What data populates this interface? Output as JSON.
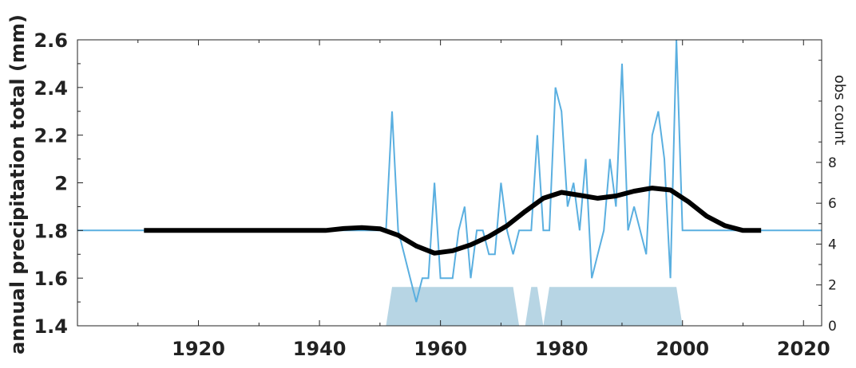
{
  "chart_data": {
    "type": "line",
    "xlabel": "",
    "ylabel": "annual precipitation total (mm)",
    "y2label": "obs count",
    "xlim": [
      1900,
      2023
    ],
    "ylim": [
      1.4,
      2.6
    ],
    "y2lim": [
      0,
      14
    ],
    "xticks": [
      1920,
      1940,
      1960,
      1980,
      2000,
      2020
    ],
    "xtick_labels": [
      "1920",
      "1940",
      "1960",
      "1980",
      "2000",
      "2020"
    ],
    "yticks": [
      1.4,
      1.6,
      1.8,
      2.0,
      2.2,
      2.4,
      2.6
    ],
    "ytick_labels": [
      "1.4",
      "1.6",
      "1.8",
      "2",
      "2.2",
      "2.4",
      "2.6"
    ],
    "y2ticks": [
      0,
      2,
      4,
      6,
      8
    ],
    "y2tick_labels": [
      "0",
      "2",
      "4",
      "6",
      "8"
    ],
    "grid": false,
    "legend": "none",
    "colors": {
      "raw": "#5aafe0",
      "smooth": "#000000",
      "obs": "#b7d5e4",
      "axis": "#222222"
    },
    "series": [
      {
        "role": "raw",
        "x": [
          1900,
          1951,
          1952,
          1953,
          1954,
          1955,
          1956,
          1957,
          1958,
          1959,
          1960,
          1961,
          1962,
          1963,
          1964,
          1965,
          1966,
          1967,
          1968,
          1969,
          1970,
          1971,
          1972,
          1973,
          1974,
          1975,
          1976,
          1977,
          1978,
          1979,
          1980,
          1981,
          1982,
          1983,
          1984,
          1985,
          1986,
          1987,
          1988,
          1989,
          1990,
          1991,
          1992,
          1993,
          1994,
          1995,
          1996,
          1997,
          1998,
          1999,
          2000,
          2023
        ],
        "y": [
          1.8,
          1.8,
          2.3,
          1.8,
          1.7,
          1.6,
          1.5,
          1.6,
          1.6,
          2.0,
          1.6,
          1.6,
          1.6,
          1.8,
          1.9,
          1.6,
          1.8,
          1.8,
          1.7,
          1.7,
          2.0,
          1.8,
          1.7,
          1.8,
          1.8,
          1.8,
          2.2,
          1.8,
          1.8,
          2.4,
          2.3,
          1.9,
          2.0,
          1.8,
          2.1,
          1.6,
          1.7,
          1.8,
          2.1,
          1.9,
          2.5,
          1.8,
          1.9,
          1.8,
          1.7,
          2.2,
          2.3,
          2.1,
          1.6,
          2.6,
          1.8,
          1.8
        ]
      },
      {
        "role": "smooth",
        "x": [
          1911,
          1941,
          1944,
          1947,
          1950,
          1953,
          1956,
          1959,
          1962,
          1965,
          1968,
          1971,
          1974,
          1977,
          1980,
          1983,
          1986,
          1989,
          1992,
          1995,
          1998,
          2001,
          2004,
          2007,
          2010,
          2013
        ],
        "y": [
          1.8,
          1.8,
          1.808,
          1.812,
          1.807,
          1.78,
          1.735,
          1.705,
          1.715,
          1.74,
          1.775,
          1.82,
          1.88,
          1.935,
          1.96,
          1.948,
          1.935,
          1.945,
          1.965,
          1.978,
          1.97,
          1.92,
          1.86,
          1.82,
          1.8,
          1.8
        ]
      }
    ],
    "obs_count": {
      "x": [
        1951,
        1952,
        1972,
        1973,
        1974,
        1975,
        1976,
        1977,
        1978,
        1999,
        2000
      ],
      "y": [
        0,
        1.9,
        1.9,
        0,
        0,
        1.9,
        1.9,
        0,
        1.9,
        1.9,
        0
      ]
    }
  }
}
